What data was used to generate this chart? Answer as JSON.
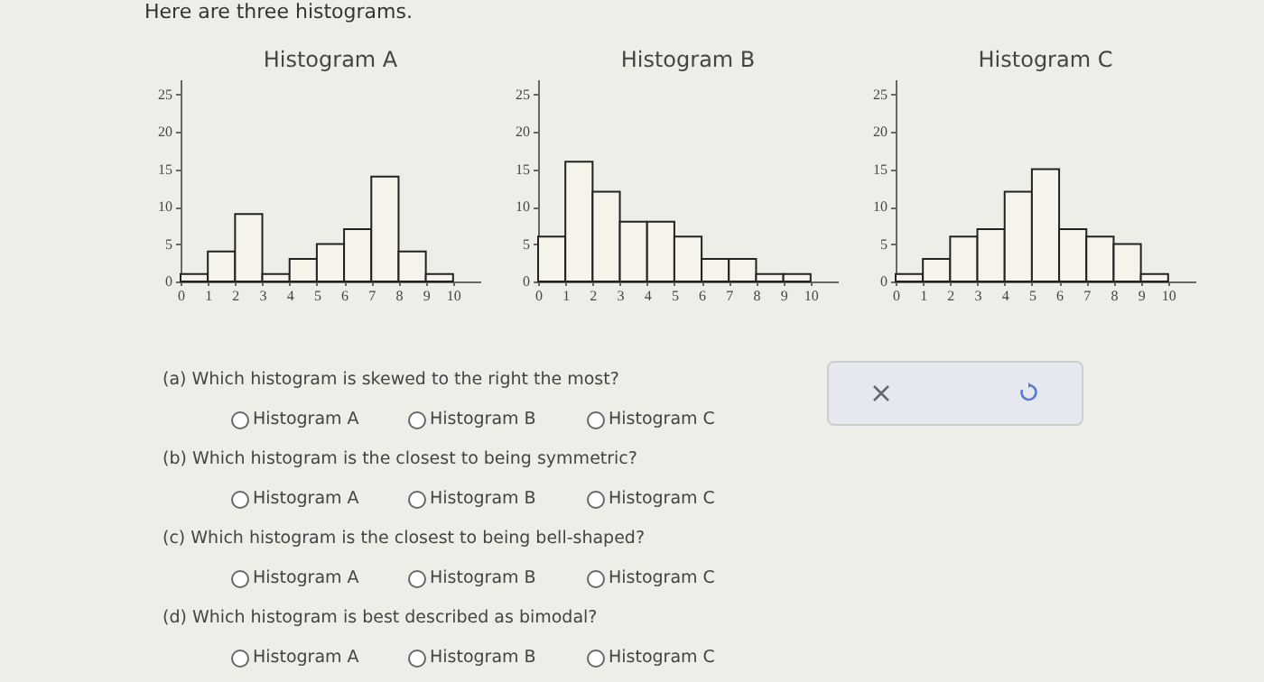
{
  "chart_data": [
    {
      "type": "other",
      "title": "Here are three histograms.",
      "annotations": [
        "(a) Which histogram is skewed to the right the most?",
        "Histogram A",
        "Histogram B",
        "Histogram C",
        "(b) Which histogram is the closest to being symmetric?",
        "Histogram A",
        "Histogram B",
        "Histogram C",
        "(c) Which histogram is the closest to being bell-shaped?",
        "Histogram A",
        "Histogram B",
        "Histogram C",
        "(d) Which histogram is best described as bimodal?",
        "Histogram A",
        "Histogram B",
        "Histogram C"
      ]
    },
    {
      "type": "histogram",
      "title": "Histogram A",
      "bins": [
        0,
        1,
        2,
        3,
        4,
        5,
        6,
        7,
        8,
        9,
        10
      ],
      "values": [
        1,
        4,
        9,
        1,
        3,
        5,
        7,
        14,
        4,
        1
      ],
      "color": "#f6f3ea",
      "xlim": [
        0,
        11
      ],
      "xticks": [
        0,
        1,
        2,
        3,
        4,
        5,
        6,
        7,
        8,
        9,
        10
      ],
      "ylim": [
        0,
        27
      ],
      "yticks": [
        0,
        5,
        10,
        15,
        20,
        25
      ]
    },
    {
      "type": "histogram",
      "title": "Histogram B",
      "bins": [
        0,
        1,
        2,
        3,
        4,
        5,
        6,
        7,
        8,
        9,
        10
      ],
      "values": [
        6,
        16,
        12,
        8,
        8,
        6,
        3,
        3,
        1,
        1
      ],
      "color": "#f6f3ea",
      "xlim": [
        0,
        11
      ],
      "xticks": [
        0,
        1,
        2,
        3,
        4,
        5,
        6,
        7,
        8,
        9,
        10
      ],
      "ylim": [
        0,
        27
      ],
      "yticks": [
        0,
        5,
        10,
        15,
        20,
        25
      ]
    },
    {
      "type": "histogram",
      "title": "Histogram C",
      "bins": [
        0,
        1,
        2,
        3,
        4,
        5,
        6,
        7,
        8,
        9,
        10
      ],
      "values": [
        1,
        3,
        6,
        7,
        12,
        15,
        7,
        6,
        5,
        1
      ],
      "color": "#f6f3ea",
      "xlim": [
        0,
        11
      ],
      "xticks": [
        0,
        1,
        2,
        3,
        4,
        5,
        6,
        7,
        8,
        9,
        10
      ],
      "ylim": [
        0,
        27
      ],
      "yticks": [
        0,
        5,
        10,
        15,
        20,
        25
      ]
    }
  ]
}
